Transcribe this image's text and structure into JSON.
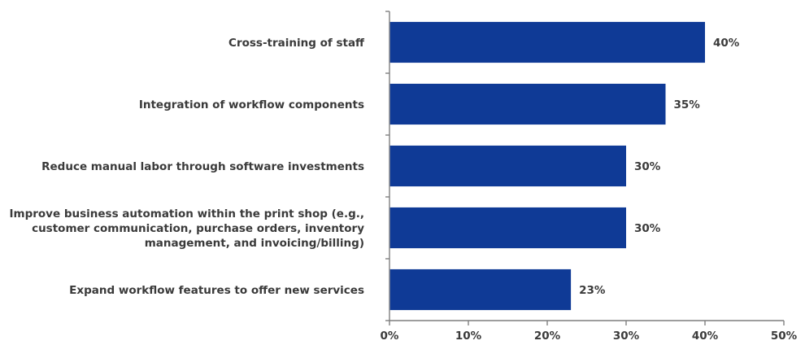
{
  "chart_data": {
    "type": "bar",
    "orientation": "horizontal",
    "categories": [
      "Cross-training of staff",
      "Integration of workflow components",
      "Reduce manual labor through software investments",
      "Improve business automation within the print shop (e.g., customer communication, purchase orders, inventory management, and invoicing/billing)",
      "Expand workflow features to offer new services"
    ],
    "category_lines": [
      [
        "Cross-training of staff"
      ],
      [
        "Integration of workflow components"
      ],
      [
        "Reduce manual labor through software investments"
      ],
      [
        "Improve business automation within the print shop (e.g.,",
        "customer communication, purchase orders, inventory",
        "management, and invoicing/billing)"
      ],
      [
        "Expand workflow features to offer new services"
      ]
    ],
    "values": [
      40,
      35,
      30,
      30,
      23
    ],
    "value_labels": [
      "40%",
      "35%",
      "30%",
      "30%",
      "23%"
    ],
    "xlim": [
      0,
      50
    ],
    "x_ticks": [
      0,
      10,
      20,
      30,
      40,
      50
    ],
    "x_tick_labels": [
      "0%",
      "10%",
      "20%",
      "30%",
      "40%",
      "50%"
    ],
    "title": "",
    "xlabel": "",
    "ylabel": "",
    "grid": false,
    "legend": "none",
    "colors": {
      "bar": "#0f3a96",
      "text": "#3a3a3a",
      "axis": "#7f7f7f"
    }
  }
}
